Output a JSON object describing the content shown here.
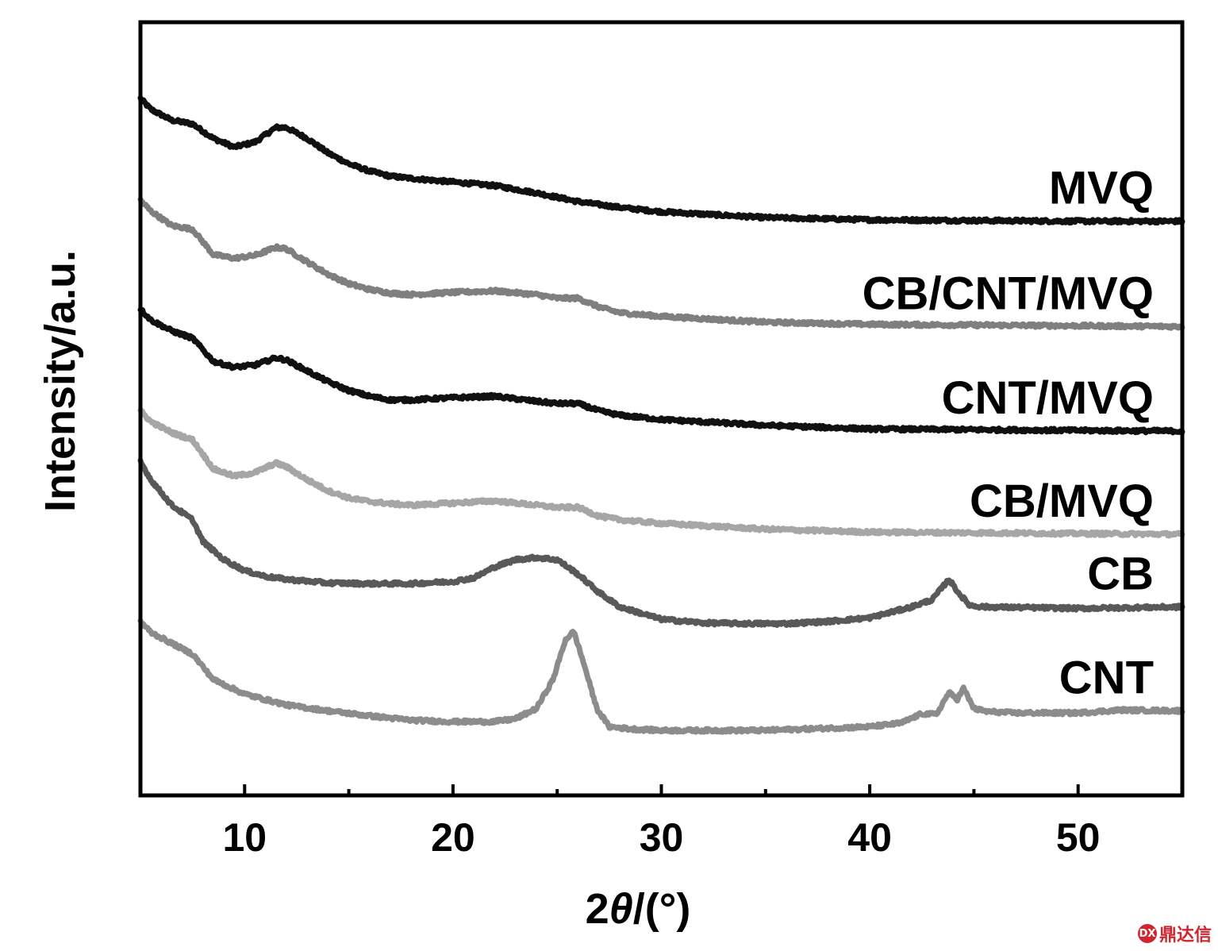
{
  "chart_data": {
    "type": "line",
    "title": "",
    "xlabel_prefix": "2",
    "xlabel_symbol": "θ",
    "xlabel_suffix": "/(°)",
    "ylabel": "Intensity/a.u.",
    "xlim": [
      5,
      55
    ],
    "ylim": [
      0,
      100
    ],
    "xticks": [
      10,
      20,
      30,
      40,
      50
    ],
    "minor_xticks": [
      15,
      25,
      35,
      45
    ],
    "grid": false,
    "legend": "inline labels at right end of each curve",
    "series": [
      {
        "name": "MVQ",
        "color": "#111111",
        "x": [
          5,
          5.5,
          6.5,
          7.5,
          8.5,
          9.5,
          10.5,
          11.5,
          12,
          13,
          14,
          15,
          16,
          17,
          18,
          20,
          22,
          24,
          26,
          28,
          30,
          35,
          40,
          45,
          50,
          55
        ],
        "y": [
          93,
          91.5,
          90,
          89.5,
          87.5,
          86.3,
          87,
          89,
          89,
          87.5,
          85.5,
          84,
          83,
          82.3,
          82,
          81.5,
          81,
          80,
          78.8,
          78,
          77.4,
          76.6,
          76.3,
          76.2,
          76.1,
          76.1
        ]
      },
      {
        "name": "CB/CNT/MVQ",
        "color": "#7f7f7f",
        "x": [
          5,
          5.5,
          6.5,
          7.5,
          8.5,
          9.5,
          10.5,
          11.5,
          12,
          13,
          14,
          15,
          16,
          17,
          18,
          20,
          22,
          24,
          25,
          26,
          27,
          28,
          30,
          35,
          40,
          45,
          50,
          55
        ],
        "y": [
          79,
          77.5,
          75.5,
          75,
          71.5,
          71,
          71.4,
          72.5,
          72.3,
          70.5,
          68.8,
          67.5,
          66.7,
          66.2,
          66,
          66.3,
          66.5,
          66,
          65.5,
          65.5,
          64.3,
          63.5,
          63,
          62.2,
          61.9,
          61.8,
          61.7,
          61.6
        ]
      },
      {
        "name": "CNT/MVQ",
        "color": "#111111",
        "x": [
          5,
          5.5,
          6.5,
          7.5,
          8.5,
          9.5,
          10.5,
          11.5,
          12,
          13,
          14,
          15,
          16,
          17,
          18,
          20,
          22,
          24,
          25,
          26,
          27,
          28,
          30,
          35,
          40,
          45,
          50,
          55
        ],
        "y": [
          64,
          62.5,
          61,
          60,
          56.8,
          56,
          56.3,
          57.3,
          57,
          55.5,
          54,
          52.8,
          52,
          51.5,
          51.5,
          51.8,
          52,
          51.3,
          51,
          51,
          50,
          49.4,
          48.8,
          48,
          47.5,
          47.4,
          47.3,
          47.2
        ]
      },
      {
        "name": "CB/MVQ",
        "color": "#a6a6a6",
        "x": [
          5,
          5.5,
          6.5,
          7.5,
          8.5,
          9.5,
          10.5,
          11.5,
          12,
          13,
          14,
          15,
          16,
          17,
          18,
          20,
          22,
          24,
          25,
          26,
          27,
          28,
          30,
          35,
          40,
          45,
          50,
          55
        ],
        "y": [
          50,
          48.5,
          47,
          46,
          42,
          41,
          41.5,
          42.8,
          42.3,
          40.5,
          39,
          38,
          37.5,
          37.2,
          37,
          37.3,
          37.6,
          37,
          36.7,
          36.7,
          35.5,
          35,
          34.5,
          33.7,
          33.3,
          33.2,
          33.1,
          33
        ]
      },
      {
        "name": "CB",
        "color": "#595959",
        "x": [
          5,
          5.5,
          6.5,
          7.5,
          8,
          9,
          10,
          11,
          12,
          14,
          16,
          18,
          20,
          21,
          22,
          23,
          24,
          25,
          26,
          27,
          28,
          30,
          32,
          34,
          36,
          38,
          40,
          42,
          43,
          43.8,
          44.3,
          44.8,
          45.5,
          50,
          55
        ],
        "y": [
          43,
          40.5,
          37,
          35,
          32,
          29.5,
          28,
          27.2,
          26.8,
          26.3,
          26.2,
          26.2,
          26.5,
          27,
          28.5,
          29.5,
          29.8,
          29.5,
          27.5,
          25,
          23,
          21.3,
          20.8,
          20.7,
          20.7,
          21,
          21.5,
          23,
          24,
          26.8,
          24.8,
          23.2,
          23,
          22.8,
          23
        ]
      },
      {
        "name": "CNT",
        "color": "#8c8c8c",
        "x": [
          5,
          5.5,
          6.5,
          7.5,
          8.5,
          10,
          12,
          14,
          16,
          18,
          20,
          22,
          23,
          24,
          24.8,
          25.4,
          25.8,
          26.3,
          26.9,
          27.5,
          28.5,
          30,
          35,
          40,
          41.5,
          42.5,
          43.2,
          43.8,
          44.2,
          44.5,
          45,
          45.6,
          47,
          50,
          52,
          55
        ],
        "y": [
          21,
          19.5,
          18,
          16.5,
          13,
          11,
          9.5,
          8.7,
          8,
          7.4,
          7.2,
          7.2,
          7.6,
          9,
          13,
          18.5,
          19.6,
          15,
          9,
          6.5,
          6.2,
          6,
          6,
          6.5,
          7,
          8.3,
          8.2,
          11.2,
          10.3,
          11.8,
          9,
          8.6,
          8.4,
          8.4,
          8.8,
          8.7
        ]
      }
    ]
  },
  "watermark": {
    "logo_text": "DX",
    "text": "鼎达信"
  }
}
